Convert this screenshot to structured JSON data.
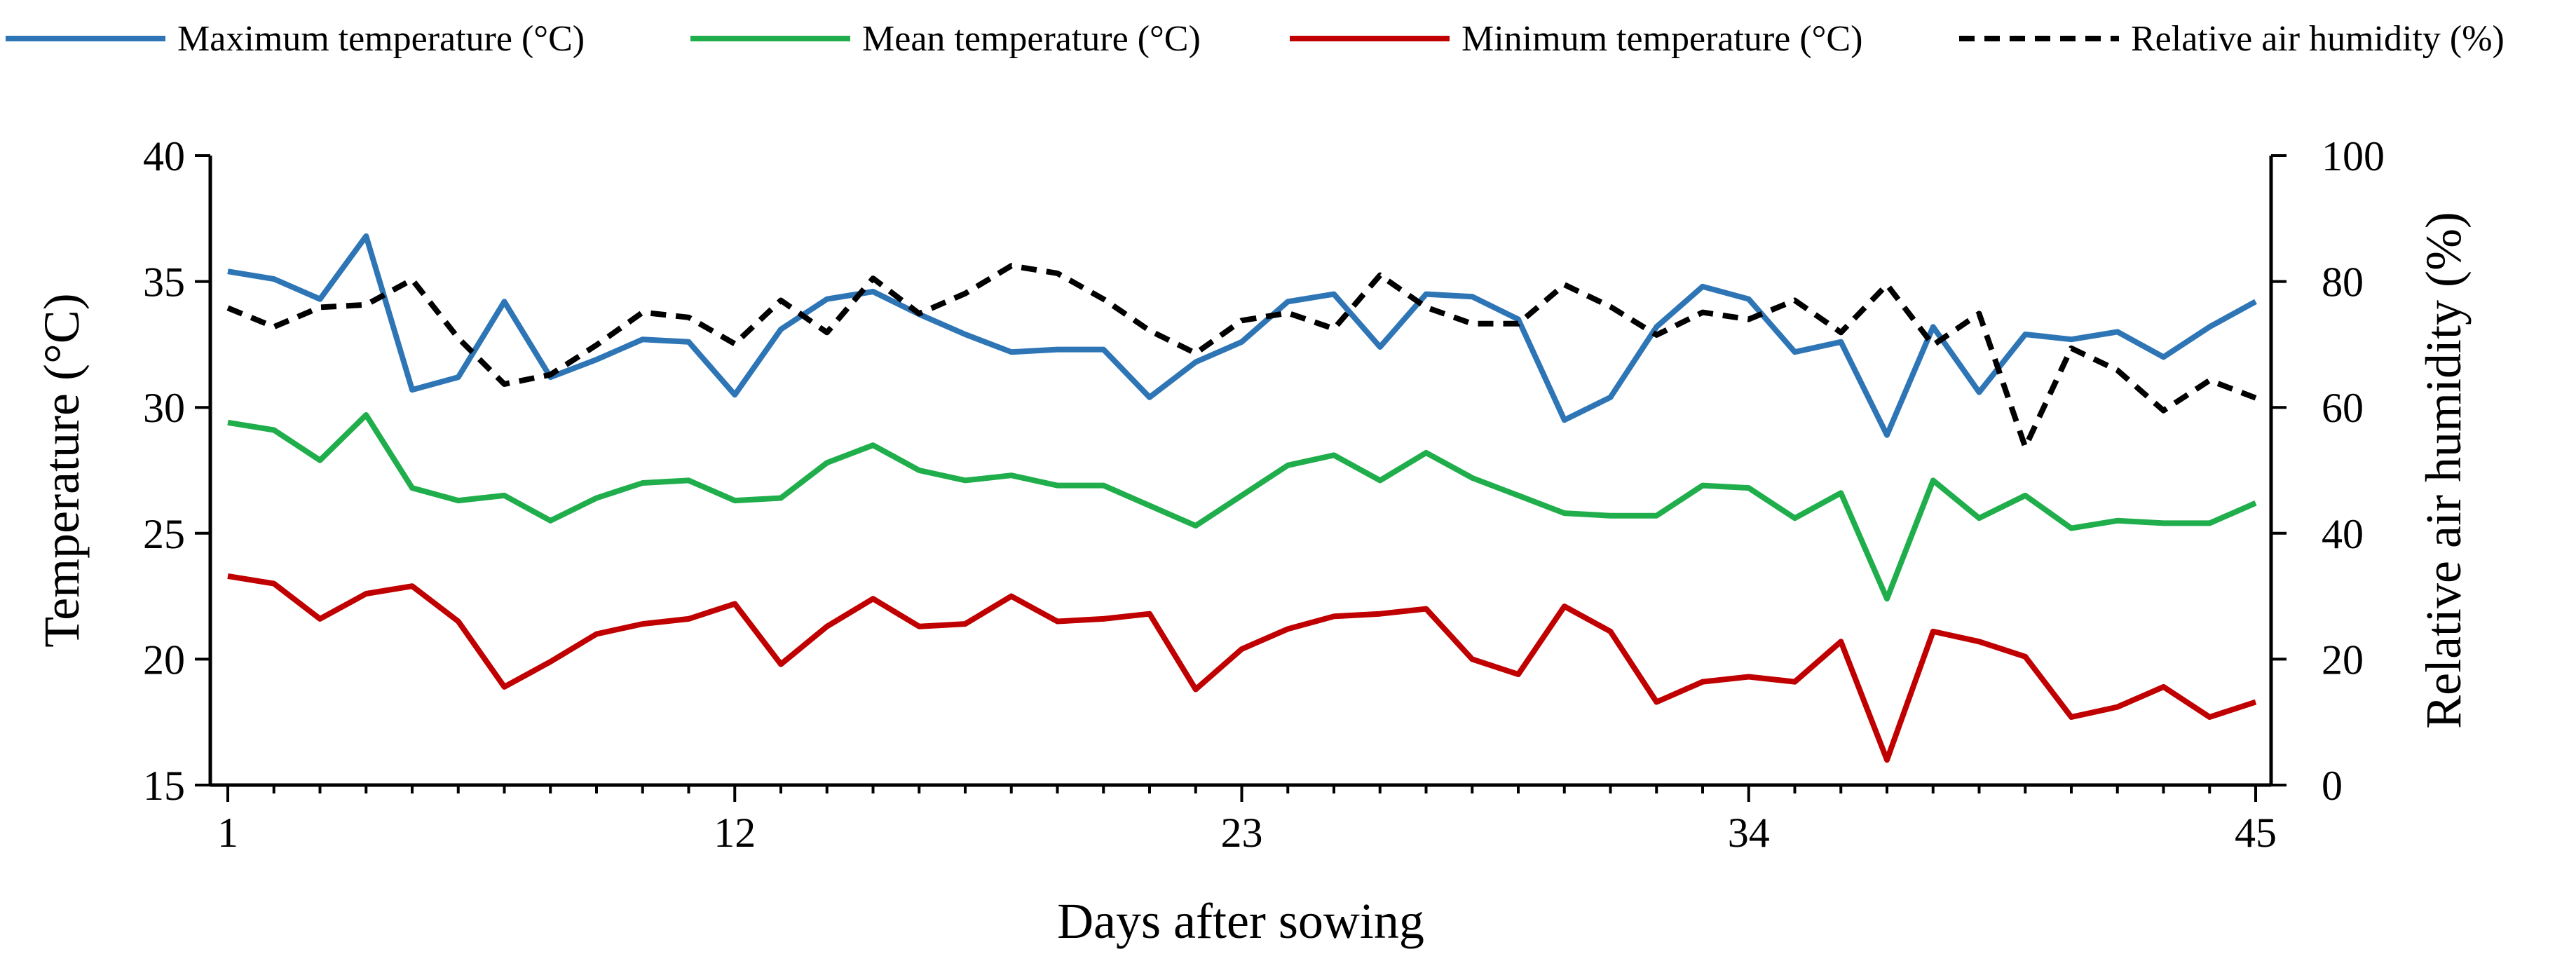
{
  "chart_data": {
    "type": "line",
    "xlabel": "Days after sowing",
    "ylabel": "Temperature (°C)",
    "y2label": "Relative air humidity (%)",
    "xlim": [
      1,
      45
    ],
    "ylim": [
      15,
      40
    ],
    "y2lim": [
      0,
      100
    ],
    "xticks": [
      1,
      12,
      23,
      34,
      45
    ],
    "yticks": [
      15,
      20,
      25,
      30,
      35,
      40
    ],
    "y2ticks": [
      0,
      20,
      40,
      60,
      80,
      100
    ],
    "legend_position": "top",
    "x": [
      1,
      2,
      3,
      4,
      5,
      6,
      7,
      8,
      9,
      10,
      11,
      12,
      13,
      14,
      15,
      16,
      17,
      18,
      19,
      20,
      21,
      22,
      23,
      24,
      25,
      26,
      27,
      28,
      29,
      30,
      31,
      32,
      33,
      34,
      35,
      36,
      37,
      38,
      39,
      40,
      41,
      42,
      43,
      44,
      45
    ],
    "series": [
      {
        "name": "Maximum temperature (°C)",
        "axis": "left",
        "color": "#2E75B6",
        "dash": "solid",
        "values": [
          35.4,
          35.1,
          34.3,
          36.8,
          30.7,
          31.2,
          34.2,
          31.2,
          31.9,
          32.7,
          32.6,
          30.5,
          33.1,
          34.3,
          34.6,
          33.7,
          32.9,
          32.2,
          32.3,
          32.3,
          30.4,
          31.8,
          32.6,
          34.2,
          34.5,
          32.4,
          34.5,
          34.4,
          33.5,
          29.5,
          30.4,
          33.2,
          34.8,
          34.3,
          32.2,
          32.6,
          28.9,
          33.2,
          30.6,
          32.9,
          32.7,
          33.0,
          32.0,
          33.2,
          34.2
        ]
      },
      {
        "name": "Mean temperature (°C)",
        "axis": "left",
        "color": "#1FAE4B",
        "dash": "solid",
        "values": [
          29.4,
          29.1,
          27.9,
          29.7,
          26.8,
          26.3,
          26.5,
          25.5,
          26.4,
          27.0,
          27.1,
          26.3,
          26.4,
          27.8,
          28.5,
          27.5,
          27.1,
          27.3,
          26.9,
          26.9,
          26.1,
          25.3,
          26.5,
          27.7,
          28.1,
          27.1,
          28.2,
          27.2,
          26.5,
          25.8,
          25.7,
          25.7,
          26.9,
          26.8,
          25.6,
          26.6,
          22.4,
          27.1,
          25.6,
          26.5,
          25.2,
          25.5,
          25.4,
          25.4,
          26.2
        ]
      },
      {
        "name": "Minimum temperature (°C)",
        "axis": "left",
        "color": "#C00000",
        "dash": "solid",
        "values": [
          23.3,
          23.0,
          21.6,
          22.6,
          22.9,
          21.5,
          18.9,
          19.9,
          21.0,
          21.4,
          21.6,
          22.2,
          19.8,
          21.3,
          22.4,
          21.3,
          21.4,
          22.5,
          21.5,
          21.6,
          21.8,
          18.8,
          20.4,
          21.2,
          21.7,
          21.8,
          22.0,
          20.0,
          19.4,
          22.1,
          21.1,
          18.3,
          19.1,
          19.3,
          19.1,
          20.7,
          16.0,
          21.1,
          20.7,
          20.1,
          17.7,
          18.1,
          18.9,
          17.7,
          18.3
        ]
      },
      {
        "name": "Relative air humidity (%)",
        "axis": "right",
        "color": "#000000",
        "dash": "dashed",
        "values": [
          75.8,
          72.8,
          75.9,
          76.3,
          80.3,
          71.0,
          63.7,
          65.2,
          69.9,
          75.1,
          74.3,
          70.1,
          77.0,
          71.9,
          80.5,
          74.9,
          78.1,
          82.5,
          81.3,
          77.2,
          72.2,
          68.6,
          73.8,
          75.0,
          72.5,
          81.0,
          75.9,
          73.3,
          73.3,
          79.5,
          76.0,
          71.5,
          75.1,
          74.0,
          77.0,
          71.9,
          79.5,
          69.9,
          74.9,
          53.7,
          69.4,
          65.9,
          59.5,
          64.3,
          61.5
        ]
      }
    ]
  }
}
